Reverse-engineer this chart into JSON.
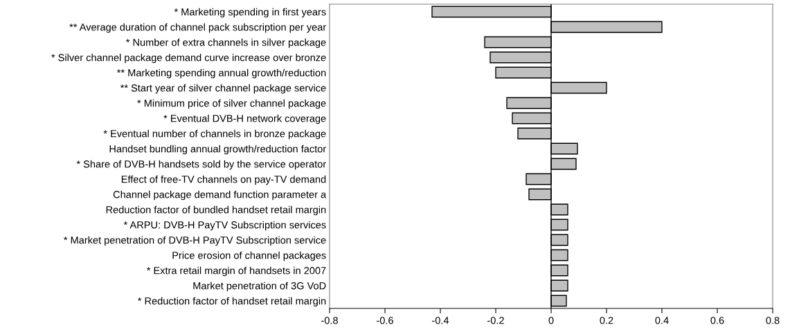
{
  "chart_data": {
    "type": "bar",
    "orientation": "horizontal",
    "categories": [
      "* Marketing spending in first years",
      "** Average duration of channel pack subscription per year",
      "* Number of extra channels in silver package",
      "* Silver channel package demand curve increase over bronze",
      "** Marketing spending annual growth/reduction",
      "** Start year of silver channel package service",
      "* Minimum price of silver channel package",
      "* Eventual DVB-H network coverage",
      "* Eventual number of channels in bronze package",
      "Handset bundling annual growth/reduction factor",
      "* Share of DVB-H handsets sold by the service operator",
      "Effect of free-TV channels on pay-TV demand",
      "Channel package demand function parameter a",
      "Reduction factor of bundled handset retail margin",
      "* ARPU: DVB-H PayTV Subscription services",
      "* Market penetration of DVB-H PayTV Subscription service",
      "Price erosion of channel packages",
      "* Extra retail margin of handsets in 2007",
      "Market penetration of 3G VoD",
      "* Reduction factor of handset retail margin"
    ],
    "values": [
      -0.43,
      0.4,
      -0.24,
      -0.22,
      -0.2,
      0.2,
      -0.16,
      -0.14,
      -0.12,
      0.095,
      0.09,
      -0.09,
      -0.08,
      0.06,
      0.06,
      0.06,
      0.06,
      0.06,
      0.06,
      0.055
    ],
    "color": "#c0c0c0",
    "xlim": [
      -0.8,
      0.8
    ],
    "xticks": [
      -0.8,
      -0.6,
      -0.4,
      -0.2,
      0,
      0.2,
      0.4,
      0.6,
      0.8
    ],
    "ref_lines": [
      {
        "axis": "x",
        "value": 0,
        "color": "#000000"
      }
    ],
    "grid": false,
    "legend": false
  }
}
